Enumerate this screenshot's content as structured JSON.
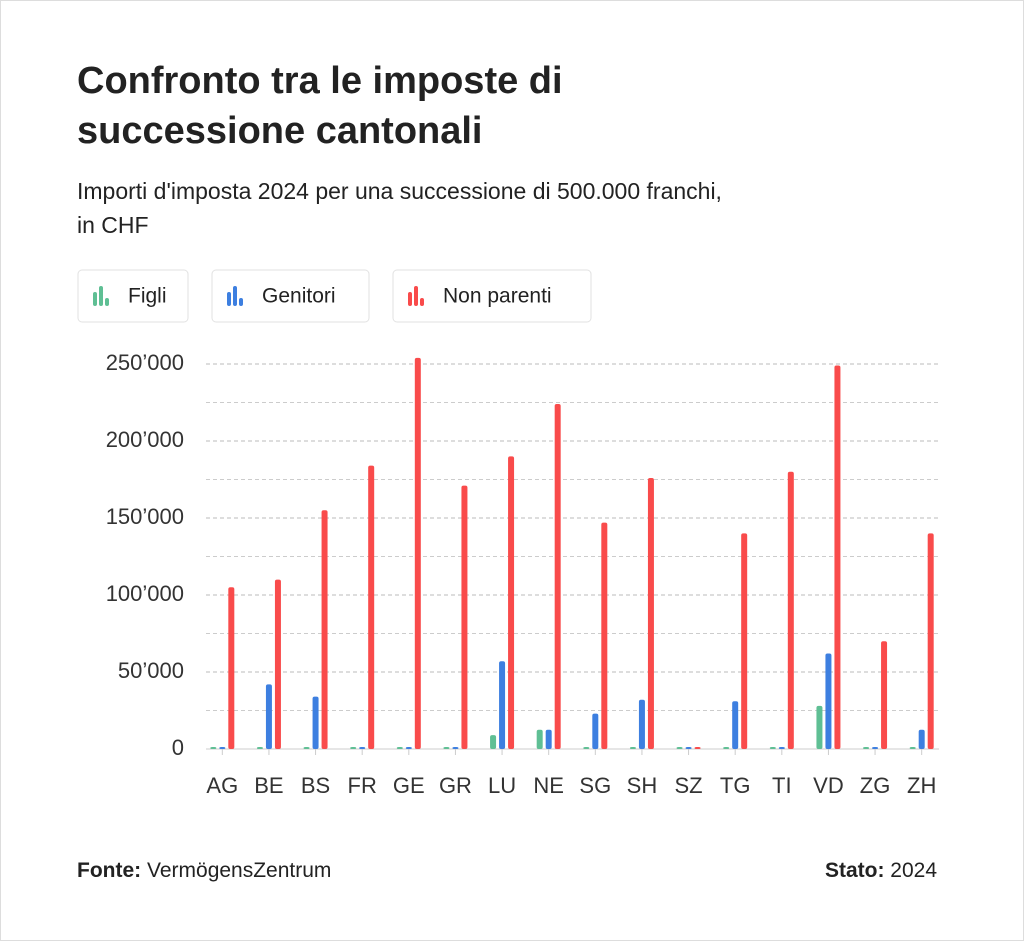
{
  "chart_data": {
    "type": "bar",
    "title": "Confronto tra le imposte di successione cantonali",
    "subtitle": "Importi d'imposta 2024 per una successione di 500.000 franchi, in CHF",
    "categories": [
      "AG",
      "BE",
      "BS",
      "FR",
      "GE",
      "GR",
      "LU",
      "NE",
      "SG",
      "SH",
      "SZ",
      "TG",
      "TI",
      "VD",
      "ZG",
      "ZH"
    ],
    "series": [
      {
        "name": "Figli",
        "color": "#5fbf94",
        "values": [
          0,
          0,
          0,
          0,
          0,
          0,
          9000,
          12500,
          0,
          0,
          0,
          0,
          0,
          28000,
          0,
          0
        ]
      },
      {
        "name": "Genitori",
        "color": "#3d7fe0",
        "values": [
          0,
          42000,
          34000,
          0,
          0,
          0,
          57000,
          12500,
          23000,
          32000,
          0,
          31000,
          0,
          62000,
          0,
          12500
        ]
      },
      {
        "name": "Non parenti",
        "color": "#f94b4b",
        "values": [
          105000,
          110000,
          155000,
          184000,
          254000,
          171000,
          190000,
          224000,
          147000,
          176000,
          0,
          140000,
          180000,
          249000,
          70000,
          140000
        ]
      }
    ],
    "ylim": [
      0,
      250000
    ],
    "yticks": [
      0,
      {
        "value": 50000,
        "label": "50’000"
      },
      {
        "value": 100000,
        "label": "100’000"
      },
      {
        "value": 150000,
        "label": "150’000"
      },
      {
        "value": 200000,
        "label": "200’000"
      },
      {
        "value": 250000,
        "label": "250’000"
      }
    ],
    "grid": true,
    "source_label": "Fonte:",
    "source": "VermögensZentrum",
    "status_label": "Stato:",
    "status": "2024"
  }
}
